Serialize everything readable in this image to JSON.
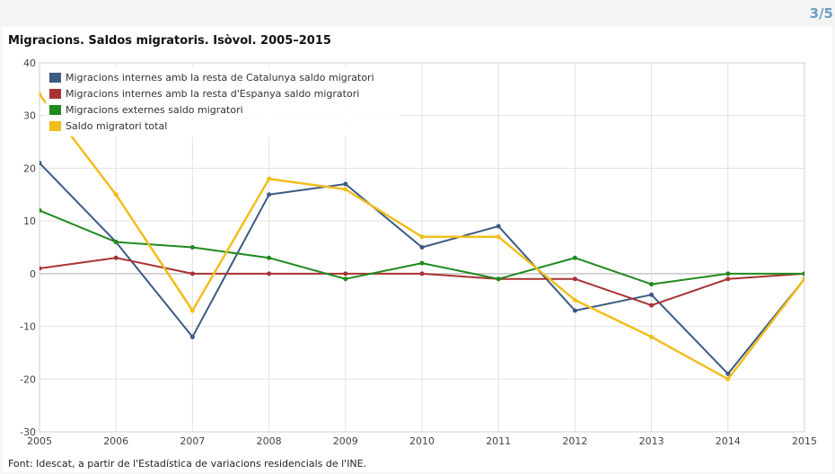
{
  "page_counter": "3/5",
  "source": "Font: Idescat, a partir de l'Estadística de variacions residencials de l'INE.",
  "chart_data": {
    "type": "line",
    "title": "Migracions. Saldos migratoris. Isòvol. 2005–2015",
    "xlabel": "",
    "ylabel": "",
    "x": [
      "2005",
      "2006",
      "2007",
      "2008",
      "2009",
      "2010",
      "2011",
      "2012",
      "2013",
      "2014",
      "2015"
    ],
    "ylim": [
      -30,
      40
    ],
    "yticks": [
      -30,
      -20,
      -10,
      0,
      10,
      20,
      30,
      40
    ],
    "grid": true,
    "legend_position": "top-left",
    "series": [
      {
        "name": "Migracions internes amb la resta de Catalunya saldo migratori",
        "color": "#3b5a84",
        "values": [
          21,
          6,
          -12,
          15,
          17,
          5,
          9,
          -7,
          -4,
          -19,
          -1
        ]
      },
      {
        "name": "Migracions internes amb la resta d'Espanya saldo migratori",
        "color": "#a83232",
        "values": [
          1,
          3,
          0,
          0,
          0,
          0,
          -1,
          -1,
          -6,
          -1,
          0
        ]
      },
      {
        "name": "Migracions externes saldo migratori",
        "color": "#1f8a1f",
        "values": [
          12,
          6,
          5,
          3,
          -1,
          2,
          -1,
          3,
          -2,
          0,
          0
        ]
      },
      {
        "name": "Saldo migratori total",
        "color": "#f0be1e",
        "values": [
          34,
          15,
          -7,
          18,
          16,
          7,
          7,
          -5,
          -12,
          -20,
          -1
        ]
      }
    ]
  }
}
